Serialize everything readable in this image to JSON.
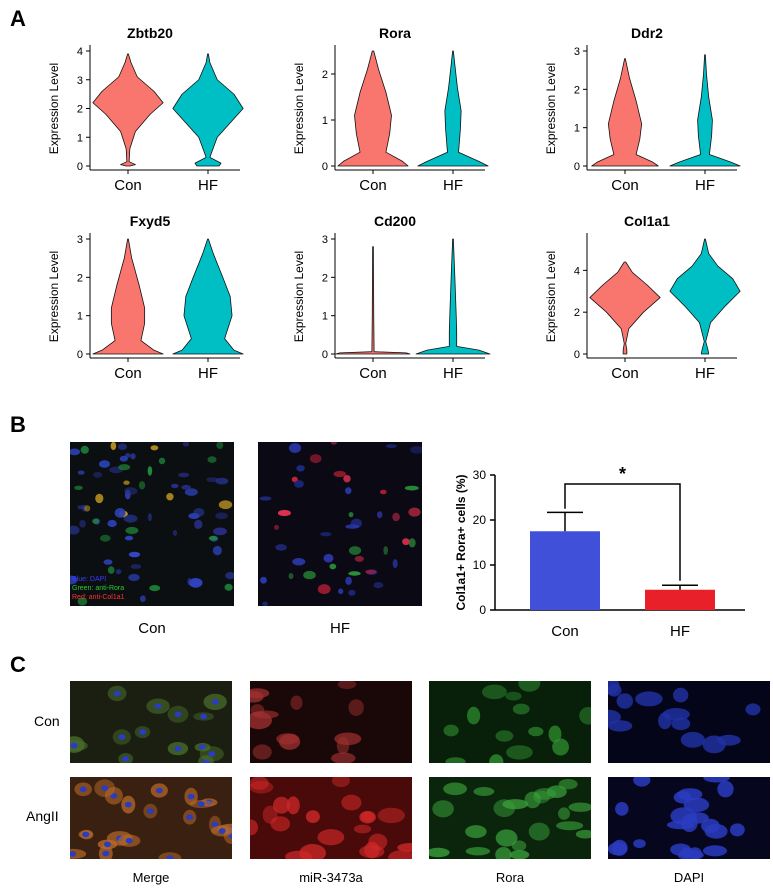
{
  "panels": {
    "a": "A",
    "b": "B",
    "c": "C"
  },
  "panel_a": {
    "ylabel": "Expression Level",
    "groups": [
      "Con",
      "HF"
    ],
    "group_colors": {
      "Con": "#F8766D",
      "HF": "#00BFC4"
    },
    "violins": [
      {
        "title": "Zbtb20",
        "yticks": [
          0,
          1,
          2,
          3,
          4
        ],
        "ymax": 4,
        "shape": "zbtb20"
      },
      {
        "title": "Rora",
        "yticks": [
          0,
          1,
          2
        ],
        "ymax": 2.5,
        "shape": "rora"
      },
      {
        "title": "Ddr2",
        "yticks": [
          0,
          1,
          2,
          3
        ],
        "ymax": 3,
        "shape": "ddr2"
      },
      {
        "title": "Fxyd5",
        "yticks": [
          0,
          1,
          2,
          3
        ],
        "ymax": 3,
        "shape": "fxyd5"
      },
      {
        "title": "Cd200",
        "yticks": [
          0,
          1,
          2,
          3
        ],
        "ymax": 3,
        "shape": "cd200"
      },
      {
        "title": "Col1a1",
        "yticks": [
          0,
          2,
          4
        ],
        "ymax": 5.5,
        "shape": "col1a1"
      }
    ]
  },
  "panel_b": {
    "images": [
      {
        "caption": "Con",
        "legend": [
          "Blue: DAPI",
          "Green: anti-Rora",
          "Red: anti-Col1a1"
        ]
      },
      {
        "caption": "HF"
      }
    ],
    "legend_colors": [
      "#3b3bff",
      "#2ecc2e",
      "#ff3333"
    ],
    "chart_data": {
      "type": "bar",
      "categories": [
        "Con",
        "HF"
      ],
      "values": [
        17.5,
        4.5
      ],
      "errors": [
        4.2,
        1.0
      ],
      "colors": [
        "#4050d8",
        "#e8202a"
      ],
      "ylabel": "Col1a1+ Rora+ cells (%)",
      "ylim": [
        0,
        30
      ],
      "yticks": [
        0,
        10,
        20,
        30
      ],
      "significance": "*"
    }
  },
  "panel_c": {
    "rows": [
      "Con",
      "AngII"
    ],
    "columns": [
      "Merge",
      "miR-3473a",
      "Rora",
      "DAPI"
    ]
  }
}
